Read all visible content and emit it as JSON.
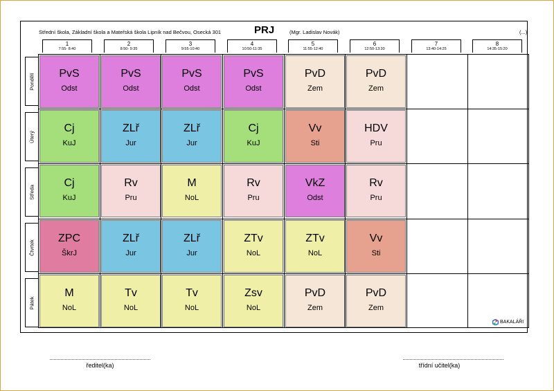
{
  "header": {
    "school": "Střední škola, Základní škola a Mateřská škola Lipník nad Bečvou, Osecká 301",
    "class_code": "PRJ",
    "teacher": "(Mgr. Ladislav Novák)",
    "more": "(...)"
  },
  "periods": [
    {
      "num": "1",
      "time": "7:55- 8:40"
    },
    {
      "num": "2",
      "time": "8:50- 9:35"
    },
    {
      "num": "3",
      "time": "9:55-10:40"
    },
    {
      "num": "4",
      "time": "10:50-11:35"
    },
    {
      "num": "5",
      "time": "11:55-12:40"
    },
    {
      "num": "6",
      "time": "12:50-13:30"
    },
    {
      "num": "7",
      "time": "13:40-14:25"
    },
    {
      "num": "8",
      "time": "14:35-15:20"
    }
  ],
  "days": [
    "Pondělí",
    "Úterý",
    "Středa",
    "Čtvrtek",
    "Pátek"
  ],
  "colors": {
    "magenta": "#de7fde",
    "beige": "#f6e6d7",
    "green": "#a5df7b",
    "blue": "#7ac5e2",
    "salmon": "#e6a28e",
    "pink": "#f6d9d9",
    "yellow": "#f0efa8",
    "rose": "#e07ca0",
    "frame": "#d9a441"
  },
  "timetable": [
    [
      {
        "subject": "PvS",
        "room": "Odst",
        "color": "magenta"
      },
      {
        "subject": "PvS",
        "room": "Odst",
        "color": "magenta"
      },
      {
        "subject": "PvS",
        "room": "Odst",
        "color": "magenta"
      },
      {
        "subject": "PvS",
        "room": "Odst",
        "color": "magenta"
      },
      {
        "subject": "PvD",
        "room": "Zem",
        "color": "beige"
      },
      {
        "subject": "PvD",
        "room": "Zem",
        "color": "beige"
      }
    ],
    [
      {
        "subject": "Cj",
        "room": "KuJ",
        "color": "green"
      },
      {
        "subject": "ZLř",
        "room": "Jur",
        "color": "blue"
      },
      {
        "subject": "ZLř",
        "room": "Jur",
        "color": "blue"
      },
      {
        "subject": "Cj",
        "room": "KuJ",
        "color": "green"
      },
      {
        "subject": "Vv",
        "room": "Sti",
        "color": "salmon"
      },
      {
        "subject": "HDV",
        "room": "Pru",
        "color": "pink"
      }
    ],
    [
      {
        "subject": "Cj",
        "room": "KuJ",
        "color": "green"
      },
      {
        "subject": "Rv",
        "room": "Pru",
        "color": "pink"
      },
      {
        "subject": "M",
        "room": "NoL",
        "color": "yellow"
      },
      {
        "subject": "Rv",
        "room": "Pru",
        "color": "pink"
      },
      {
        "subject": "VkZ",
        "room": "Odst",
        "color": "magenta"
      },
      {
        "subject": "Rv",
        "room": "Pru",
        "color": "pink"
      }
    ],
    [
      {
        "subject": "ZPC",
        "room": "ŠkrJ",
        "color": "rose"
      },
      {
        "subject": "ZLř",
        "room": "Jur",
        "color": "blue"
      },
      {
        "subject": "ZLř",
        "room": "Jur",
        "color": "blue"
      },
      {
        "subject": "ZTv",
        "room": "NoL",
        "color": "yellow"
      },
      {
        "subject": "ZTv",
        "room": "NoL",
        "color": "yellow"
      },
      {
        "subject": "Vv",
        "room": "Sti",
        "color": "salmon"
      }
    ],
    [
      {
        "subject": "M",
        "room": "NoL",
        "color": "yellow"
      },
      {
        "subject": "Tv",
        "room": "NoL",
        "color": "yellow"
      },
      {
        "subject": "Tv",
        "room": "NoL",
        "color": "yellow"
      },
      {
        "subject": "Zsv",
        "room": "NoL",
        "color": "yellow"
      },
      {
        "subject": "PvD",
        "room": "Zem",
        "color": "beige"
      },
      {
        "subject": "PvD",
        "room": "Zem",
        "color": "beige"
      }
    ]
  ],
  "logo": {
    "icon": "bakalari-logo-icon",
    "text": "BAKALÁŘI"
  },
  "signatures": {
    "left": "ředitel(ka)",
    "right": "třídní učitel(ka)"
  }
}
